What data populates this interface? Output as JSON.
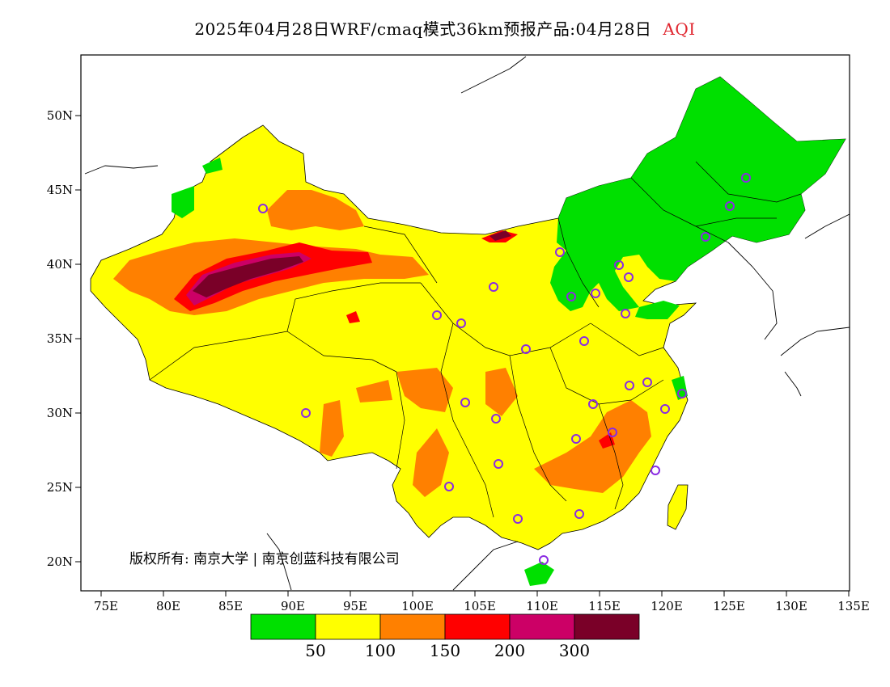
{
  "title": {
    "main": "2025年04月28日WRF/cmaq模式36km预报产品:04月28日",
    "variable": "AQI"
  },
  "axes": {
    "lon_ticks": [
      "75E",
      "80E",
      "85E",
      "90E",
      "95E",
      "100E",
      "105E",
      "110E",
      "115E",
      "120E",
      "125E",
      "130E",
      "135E"
    ],
    "lat_ticks": [
      "50N",
      "45N",
      "40N",
      "35N",
      "30N",
      "25N",
      "20N"
    ]
  },
  "copyright": "版权所有: 南京大学 | 南京创蓝科技有限公司",
  "legend": {
    "colors": [
      "#00e000",
      "#ffff00",
      "#ff8000",
      "#ff0000",
      "#cc0066",
      "#7a0028"
    ],
    "labels": [
      "50",
      "100",
      "150",
      "200",
      "300"
    ]
  },
  "colors": {
    "good": "#00e000",
    "moderate": "#ffff00",
    "sensitive": "#ff8000",
    "unhealthy": "#ff0000",
    "very_unhealthy": "#cc0066",
    "hazardous": "#7a0028",
    "station_marker": "#8a2be2"
  }
}
